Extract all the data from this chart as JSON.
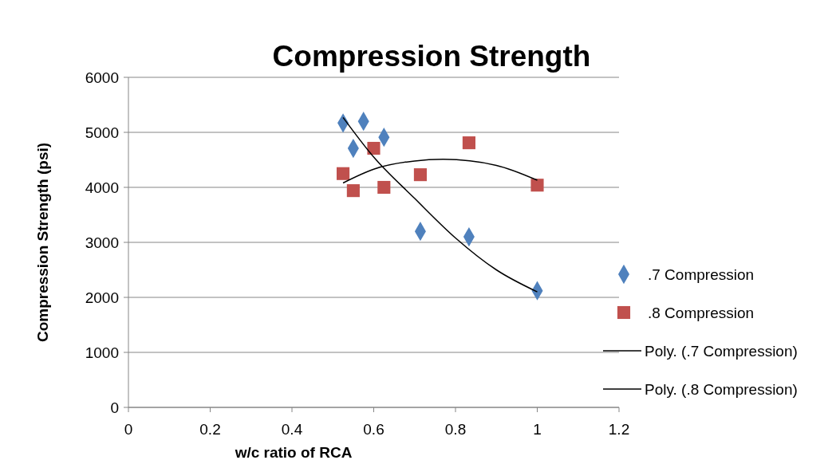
{
  "chart_data": {
    "type": "scatter",
    "title": "Compression Strength",
    "xlabel": "w/c ratio of RCA",
    "ylabel": "Compression Strength (psi)",
    "xlim": [
      0,
      1.2
    ],
    "xticks": [
      0,
      0.2,
      0.4,
      0.6,
      0.8,
      1,
      1.2
    ],
    "ylim": [
      0,
      6000
    ],
    "yticks": [
      0,
      1000,
      2000,
      3000,
      4000,
      5000,
      6000
    ],
    "grid": "y",
    "legend": "right",
    "series": [
      {
        "name": ".7 Compression",
        "color": "#4f81bd",
        "marker": "diamond",
        "x": [
          0.525,
          0.55,
          0.575,
          0.625,
          0.714,
          0.833,
          1.0
        ],
        "values": [
          5170,
          4710,
          5200,
          4910,
          3200,
          3100,
          2120
        ]
      },
      {
        "name": ".8 Compression",
        "color": "#c0504d",
        "marker": "square",
        "x": [
          0.525,
          0.55,
          0.6,
          0.625,
          0.714,
          0.833,
          1.0
        ],
        "values": [
          4250,
          3940,
          4710,
          4000,
          4230,
          4810,
          4040
        ]
      },
      {
        "name": "Poly. (.7 Compression)",
        "type": "line",
        "color": "#000000",
        "marker": "none",
        "x": [
          0.525,
          0.6,
          0.7,
          0.8,
          0.9,
          1.0
        ],
        "values": [
          5270,
          4550,
          3800,
          3080,
          2500,
          2100
        ]
      },
      {
        "name": "Poly. (.8 Compression)",
        "type": "line",
        "color": "#000000",
        "marker": "none",
        "x": [
          0.525,
          0.6,
          0.7,
          0.77,
          0.9,
          1.0
        ],
        "values": [
          4080,
          4330,
          4480,
          4510,
          4400,
          4130
        ]
      }
    ]
  }
}
